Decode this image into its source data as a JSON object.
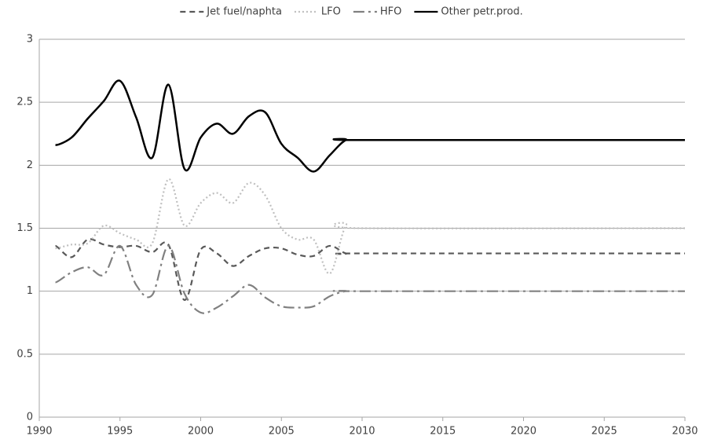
{
  "chart_data": {
    "type": "line",
    "x": [
      1991,
      1992,
      1993,
      1994,
      1995,
      1996,
      1997,
      1998,
      1999,
      2000,
      2001,
      2002,
      2003,
      2004,
      2005,
      2006,
      2007,
      2008,
      2009,
      2010,
      2030
    ],
    "series": [
      {
        "name": "Jet fuel/naphta",
        "color": "#595959",
        "dash": "7,5",
        "values": [
          1.36,
          1.27,
          1.41,
          1.37,
          1.35,
          1.36,
          1.31,
          1.37,
          0.93,
          1.33,
          1.3,
          1.2,
          1.28,
          1.34,
          1.34,
          1.29,
          1.28,
          1.36,
          1.3,
          1.3,
          1.3
        ]
      },
      {
        "name": "LFO",
        "color": "#bfbfbf",
        "dash": "2,3",
        "values": [
          1.34,
          1.37,
          1.38,
          1.52,
          1.46,
          1.41,
          1.38,
          1.89,
          1.52,
          1.7,
          1.78,
          1.7,
          1.86,
          1.76,
          1.5,
          1.41,
          1.41,
          1.14,
          1.52,
          1.5,
          1.5
        ]
      },
      {
        "name": "HFO",
        "color": "#808080",
        "dash": "14,5,3,5",
        "values": [
          1.07,
          1.15,
          1.19,
          1.13,
          1.36,
          1.05,
          0.97,
          1.36,
          0.98,
          0.83,
          0.87,
          0.96,
          1.05,
          0.95,
          0.88,
          0.87,
          0.88,
          0.96,
          1.0,
          1.0,
          1.0
        ]
      },
      {
        "name": "Other petr.prod.",
        "color": "#000000",
        "dash": "none",
        "values": [
          2.16,
          2.22,
          2.37,
          2.51,
          2.67,
          2.38,
          2.06,
          2.64,
          1.97,
          2.22,
          2.33,
          2.25,
          2.39,
          2.42,
          2.17,
          2.06,
          1.95,
          2.08,
          2.2,
          2.2,
          2.2
        ]
      }
    ],
    "xlim": [
      1990,
      2030
    ],
    "xticks": [
      1990,
      1995,
      2000,
      2005,
      2010,
      2015,
      2020,
      2025,
      2030
    ],
    "ylim": [
      0,
      3
    ],
    "yticks": [
      0,
      0.5,
      1,
      1.5,
      2,
      2.5,
      3
    ],
    "grid": true,
    "legend": "top",
    "smooth": true
  }
}
